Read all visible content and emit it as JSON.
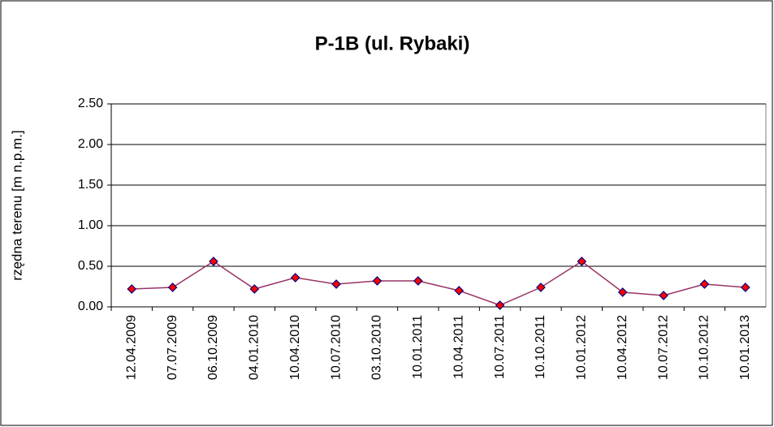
{
  "chart_data": {
    "type": "line",
    "title": "P-1B (ul. Rybaki)",
    "y_label": "rzędna terenu [m n.p.m.]",
    "categories": [
      "12.04.2009",
      "07.07.2009",
      "06.10.2009",
      "04.01.2010",
      "10.04.2010",
      "10.07.2010",
      "03.10.2010",
      "10.01.2011",
      "10.04.2011",
      "10.07.2011",
      "10.10.2011",
      "10.01.2012",
      "10.04.2012",
      "10.07.2012",
      "10.10.2012",
      "10.01.2013"
    ],
    "series": [
      {
        "name": "P-1B",
        "color": "#993366",
        "marker_color": "#ff0000",
        "marker_edge": "#000080",
        "values": [
          0.22,
          0.24,
          0.56,
          0.22,
          0.36,
          0.28,
          0.32,
          0.32,
          0.2,
          0.02,
          0.24,
          0.56,
          0.18,
          0.14,
          0.28,
          0.24
        ]
      }
    ],
    "ylim": [
      0,
      2.5
    ],
    "yticks": [
      {
        "value": 0,
        "label": "0.00"
      },
      {
        "value": 0.5,
        "label": "0.50"
      },
      {
        "value": 1,
        "label": "1.00"
      },
      {
        "value": 1.5,
        "label": "1.50"
      },
      {
        "value": 2,
        "label": "2.00"
      },
      {
        "value": 2.5,
        "label": "2.50"
      }
    ],
    "grid": true
  }
}
